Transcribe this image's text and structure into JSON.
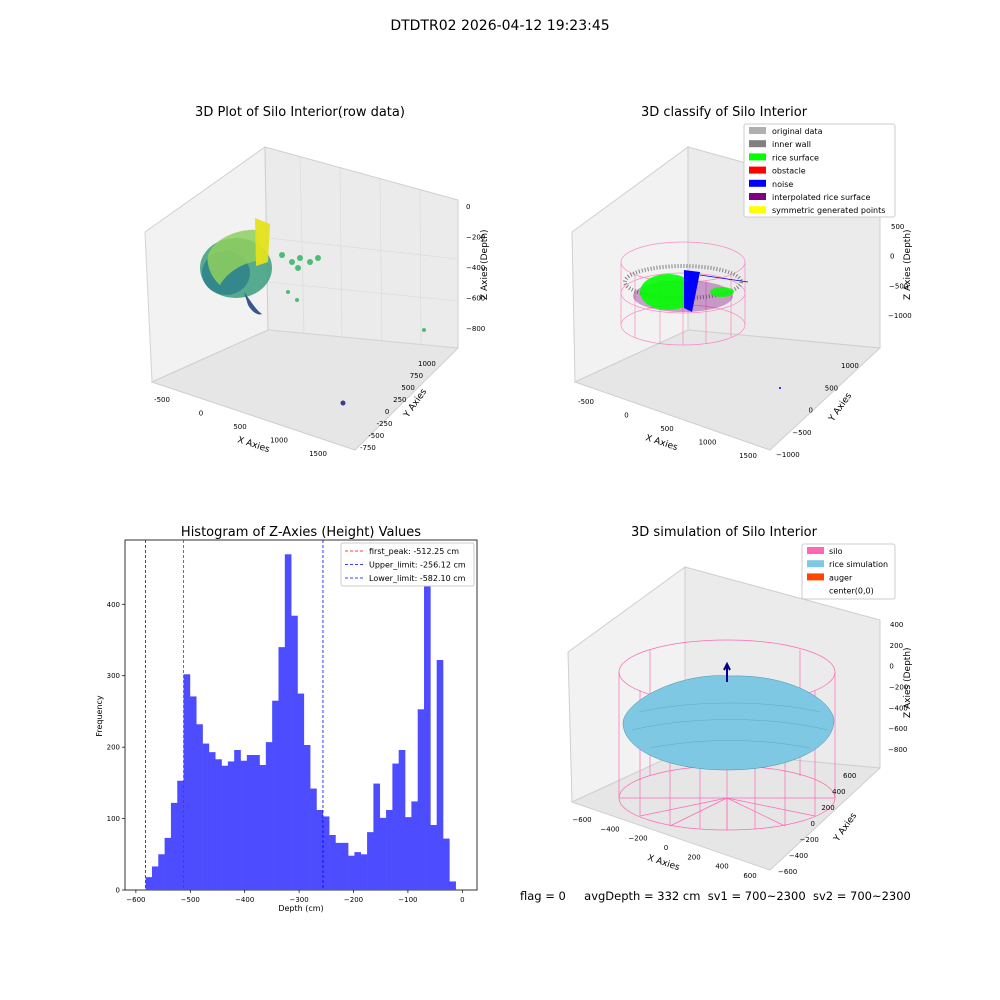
{
  "suptitle": "DTDTR02 2026-04-12 19:23:45",
  "status": {
    "flag": "flag = 0",
    "avg_depth": "avgDepth = 332 cm",
    "sv1": "sv1 = 700~2300",
    "sv2": "sv2 = 700~2300"
  },
  "colors": {
    "hist_bar": "#4d4dff",
    "peak_line": "#ff0000",
    "limit_line": "#0000ff",
    "silo": "#ff69b4",
    "rice_simulation": "#7ec8e3",
    "auger": "#ff4500",
    "rice_surface": "#00ff00",
    "noise": "#0000ff",
    "inner_wall": "#808080",
    "original_data": "#b0b0b0",
    "interpolated": "#800080",
    "symmetric": "#ffff00",
    "obstacle": "#ff0000"
  },
  "chart_data": [
    {
      "type": "scatter",
      "projection": "3d",
      "title": "3D Plot of Silo Interior(row data)",
      "xlabel": "X Axies",
      "ylabel": "Y Axies",
      "zlabel": "Z Axies (Depth)",
      "x_ticks": [
        "-500",
        "0",
        "500",
        "1000",
        "1500"
      ],
      "y_ticks": [
        "-750",
        "-500",
        "-250",
        "0",
        "250",
        "500",
        "750",
        "1000"
      ],
      "z_ticks": [
        "0",
        "−200",
        "−400",
        "−600",
        "−800"
      ],
      "colormap": "viridis"
    },
    {
      "type": "scatter",
      "projection": "3d",
      "title": "3D classify of Silo Interior",
      "xlabel": "X Axies",
      "ylabel": "Y Axies",
      "zlabel": "Z Axies (Depth)",
      "x_ticks": [
        "-500",
        "0",
        "500",
        "1000",
        "1500"
      ],
      "y_ticks": [
        "−1000",
        "−500",
        "0",
        "500",
        "1000"
      ],
      "z_ticks": [
        "500",
        "0",
        "−500",
        "−1000"
      ],
      "legend": {
        "placement": "top-right",
        "entries": [
          "original data",
          "inner wall",
          "rice surface",
          "obstacle",
          "noise",
          "interpolated rice surface",
          "symmetric generated points"
        ]
      }
    },
    {
      "type": "bar",
      "title": "Histogram of Z-Axies (Height) Values",
      "xlabel": "Depth (cm)",
      "ylabel": "Frequency",
      "xlim": [
        -620,
        27
      ],
      "ylim": [
        0,
        490
      ],
      "x_ticks": [
        "−600",
        "−500",
        "−400",
        "−300",
        "−200",
        "−100",
        "0"
      ],
      "y_ticks": [
        "0",
        "100",
        "200",
        "300",
        "400"
      ],
      "bin_start": -582.1,
      "bin_width": 11.63,
      "values": [
        18,
        33,
        50,
        73,
        122,
        153,
        302,
        271,
        232,
        205,
        193,
        183,
        174,
        180,
        196,
        181,
        189,
        189,
        175,
        207,
        265,
        340,
        470,
        384,
        275,
        203,
        142,
        112,
        103,
        77,
        66,
        66,
        48,
        53,
        50,
        81,
        149,
        101,
        112,
        177,
        196,
        102,
        124,
        253,
        432,
        91,
        322,
        72,
        12
      ],
      "lines": [
        {
          "label": "first_peak: -512.25 cm",
          "x": -512.25,
          "color": "#ff0000"
        },
        {
          "label": "Upper_limit: -256.12 cm",
          "x": -256.12,
          "color": "#0000ff"
        },
        {
          "label": "Lower_limit: -582.10 cm",
          "x": -582.1,
          "color": "#0000ff"
        }
      ],
      "legend": {
        "placement": "top-right"
      }
    },
    {
      "type": "surface",
      "projection": "3d",
      "title": "3D simulation of Silo Interior",
      "xlabel": "X Axies",
      "ylabel": "Y Axies",
      "zlabel": "Z Axies (Depth)",
      "x_ticks": [
        "−600",
        "−400",
        "−200",
        "0",
        "200",
        "400",
        "600"
      ],
      "y_ticks": [
        "−600",
        "−400",
        "−200",
        "0",
        "200",
        "400",
        "600"
      ],
      "z_ticks": [
        "400",
        "200",
        "0",
        "−200",
        "−400",
        "−600",
        "−800"
      ],
      "legend": {
        "placement": "top-right",
        "entries": [
          "silo",
          "rice simulation",
          "auger",
          "center(0,0)"
        ]
      }
    }
  ]
}
